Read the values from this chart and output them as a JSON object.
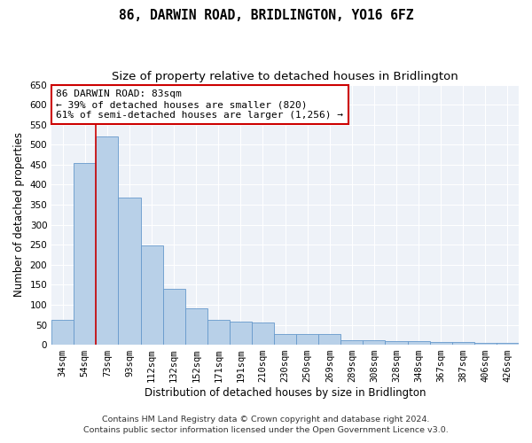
{
  "title": "86, DARWIN ROAD, BRIDLINGTON, YO16 6FZ",
  "subtitle": "Size of property relative to detached houses in Bridlington",
  "xlabel": "Distribution of detached houses by size in Bridlington",
  "ylabel": "Number of detached properties",
  "bar_color": "#b8d0e8",
  "bar_edge_color": "#6699cc",
  "categories": [
    "34sqm",
    "54sqm",
    "73sqm",
    "93sqm",
    "112sqm",
    "132sqm",
    "152sqm",
    "171sqm",
    "191sqm",
    "210sqm",
    "230sqm",
    "250sqm",
    "269sqm",
    "289sqm",
    "308sqm",
    "328sqm",
    "348sqm",
    "367sqm",
    "387sqm",
    "406sqm",
    "426sqm"
  ],
  "values": [
    63,
    455,
    520,
    368,
    248,
    140,
    92,
    63,
    57,
    55,
    27,
    26,
    27,
    12,
    12,
    9,
    8,
    6,
    7,
    5,
    5
  ],
  "ylim": [
    0,
    650
  ],
  "yticks": [
    0,
    50,
    100,
    150,
    200,
    250,
    300,
    350,
    400,
    450,
    500,
    550,
    600,
    650
  ],
  "property_line_idx": 2,
  "annotation_text": "86 DARWIN ROAD: 83sqm\n← 39% of detached houses are smaller (820)\n61% of semi-detached houses are larger (1,256) →",
  "annotation_box_color": "#ffffff",
  "annotation_box_edge": "#cc0000",
  "footer1": "Contains HM Land Registry data © Crown copyright and database right 2024.",
  "footer2": "Contains public sector information licensed under the Open Government Licence v3.0.",
  "background_color": "#eef2f8",
  "grid_color": "#ffffff",
  "fig_bg_color": "#ffffff",
  "title_fontsize": 10.5,
  "subtitle_fontsize": 9.5,
  "axis_label_fontsize": 8.5,
  "tick_fontsize": 7.5,
  "annotation_fontsize": 8,
  "footer_fontsize": 6.8
}
